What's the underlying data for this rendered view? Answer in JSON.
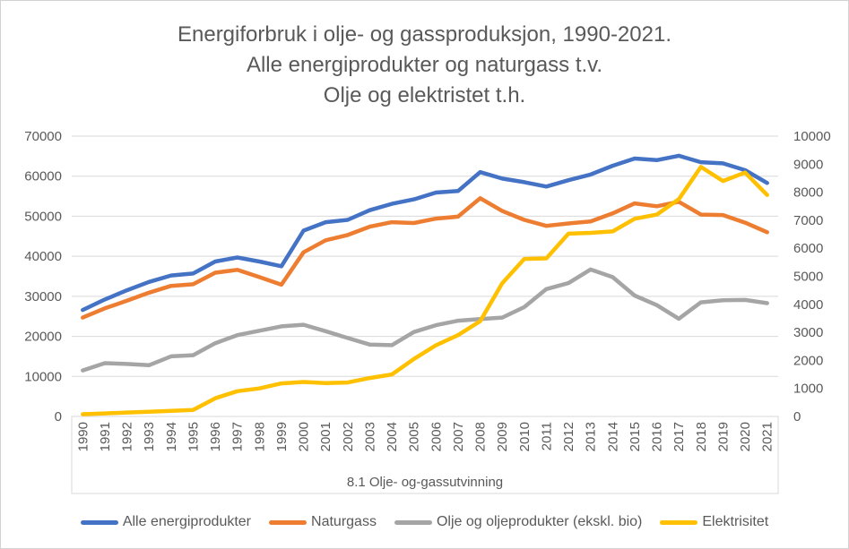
{
  "chart_data": {
    "type": "line",
    "title_lines": [
      "Energiforbruk i olje- og gassproduksjon, 1990-2021.",
      "Alle energiprodukter og naturgass t.v.",
      "Olje og elektristet t.h."
    ],
    "x_label": "8.1 Olje- og-gassutvinning",
    "categories": [
      "1990",
      "1991",
      "1992",
      "1993",
      "1994",
      "1995",
      "1996",
      "1997",
      "1998",
      "1999",
      "2000",
      "2001",
      "2002",
      "2003",
      "2004",
      "2005",
      "2006",
      "2007",
      "2008",
      "2009",
      "2010",
      "2011",
      "2012",
      "2013",
      "2014",
      "2015",
      "2016",
      "2017",
      "2018",
      "2019",
      "2020",
      "2021"
    ],
    "left_axis": {
      "min": 0,
      "max": 70000,
      "ticks": [
        0,
        10000,
        20000,
        30000,
        40000,
        50000,
        60000,
        70000
      ]
    },
    "right_axis": {
      "min": 0,
      "max": 10000,
      "ticks": [
        0,
        1000,
        2000,
        3000,
        4000,
        5000,
        6000,
        7000,
        8000,
        9000,
        10000
      ]
    },
    "grid": true,
    "legend_position": "bottom",
    "series": [
      {
        "name": "Alle energiprodukter",
        "color": "#4472C4",
        "axis": "left",
        "values": [
          26600,
          29200,
          31500,
          33600,
          35200,
          35700,
          38700,
          39700,
          38700,
          37500,
          46400,
          48500,
          49100,
          51500,
          53100,
          54200,
          55900,
          56300,
          61000,
          59400,
          58500,
          57400,
          59000,
          60400,
          62600,
          64400,
          64000,
          65100,
          63500,
          63200,
          61500,
          58300
        ]
      },
      {
        "name": "Naturgass",
        "color": "#ED7D31",
        "axis": "left",
        "values": [
          24700,
          27000,
          28900,
          30900,
          32600,
          33000,
          35900,
          36600,
          34800,
          32900,
          41000,
          44000,
          45300,
          47400,
          48500,
          48300,
          49400,
          49900,
          54500,
          51300,
          49100,
          47600,
          48200,
          48700,
          50700,
          53200,
          52500,
          53600,
          50400,
          50300,
          48400,
          46000
        ]
      },
      {
        "name": "Olje og oljeprodukter (ekskl. bio)",
        "color": "#A5A5A5",
        "axis": "left",
        "values": [
          11500,
          13300,
          13100,
          12800,
          15000,
          15300,
          18300,
          20300,
          21400,
          22500,
          22900,
          21300,
          19600,
          17950,
          17800,
          21100,
          22800,
          23900,
          24300,
          24700,
          27300,
          31800,
          33300,
          36700,
          34800,
          30200,
          27800,
          24400,
          28500,
          29000,
          29100,
          28300
        ]
      },
      {
        "name": "Elektrisitet",
        "color": "#FFC000",
        "axis": "right",
        "values": [
          80,
          110,
          140,
          170,
          200,
          230,
          650,
          900,
          1000,
          1180,
          1230,
          1190,
          1210,
          1370,
          1500,
          2050,
          2540,
          2900,
          3400,
          4750,
          5620,
          5640,
          6520,
          6550,
          6600,
          7050,
          7200,
          7750,
          8900,
          8400,
          8700,
          7900
        ]
      }
    ],
    "style": {
      "grid_color": "#D9D9D9",
      "text_color": "#595959",
      "border_color": "#D2D2D2",
      "background": "#FFFFFF"
    }
  }
}
